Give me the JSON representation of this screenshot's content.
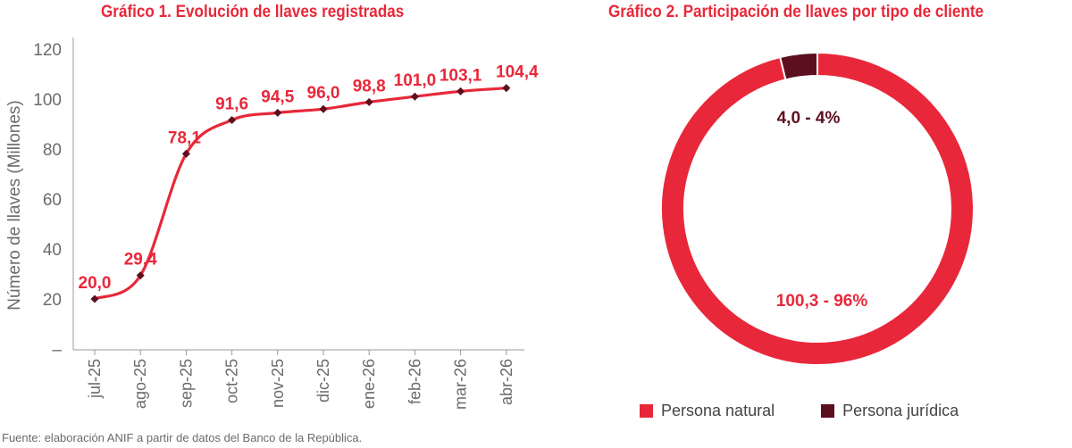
{
  "source_note": "Fuente: elaboración ANIF a partir de datos del Banco de la República.",
  "colors": {
    "primary": "#e8283a",
    "secondary": "#5c0f1f",
    "axis": "#6b6b6b"
  },
  "chart_data": [
    {
      "type": "line",
      "title": "Gráfico 1. Evolución de llaves registradas",
      "xlabel": "",
      "ylabel": "Número de llaves (Millones)",
      "categories": [
        "jul-25",
        "ago-25",
        "sep-25",
        "oct-25",
        "nov-25",
        "dic-25",
        "ene-26",
        "feb-26",
        "mar-26",
        "abr-26"
      ],
      "y_ticks": [
        "–",
        "20",
        "40",
        "60",
        "80",
        "100",
        "120"
      ],
      "ylim": [
        0,
        120
      ],
      "series": [
        {
          "values": [
            20.0,
            29.4,
            78.1,
            91.6,
            94.5,
            96.0,
            98.8,
            101.0,
            103.1,
            104.4
          ],
          "labels": [
            "20,0",
            "29,4",
            "78,1",
            "91,6",
            "94,5",
            "96,0",
            "98,8",
            "101,0",
            "103,1",
            "104,4"
          ]
        }
      ],
      "grid": false
    },
    {
      "type": "pie",
      "title": "Gráfico 2. Participación de llaves por tipo de cliente",
      "categories": [
        "Persona natural",
        "Persona jurídica"
      ],
      "values": [
        100.3,
        4.0
      ],
      "percent": [
        96,
        4
      ],
      "labels": [
        "100,3 - 96%",
        "4,0 - 4%"
      ],
      "donut": true,
      "legend": "bottom"
    }
  ]
}
